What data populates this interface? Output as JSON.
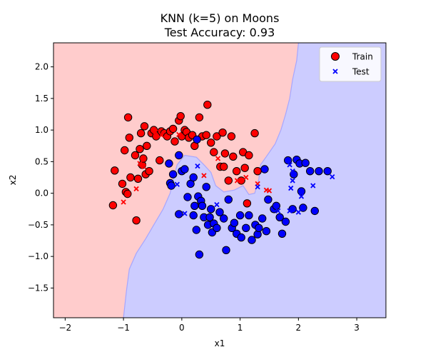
{
  "chart_data": {
    "type": "scatter",
    "title": "KNN (k=5) on Moons",
    "subtitle": "Test Accuracy: 0.93",
    "xlabel": "x1",
    "ylabel": "x2",
    "xlim": [
      -2.2,
      3.5
    ],
    "ylim": [
      -1.97,
      2.38
    ],
    "xticks": [
      -2,
      -1,
      0,
      1,
      2,
      3
    ],
    "xtick_labels": [
      "−2",
      "−1",
      "0",
      "1",
      "2",
      "3"
    ],
    "yticks": [
      -1.5,
      -1.0,
      -0.5,
      0.0,
      0.5,
      1.0,
      1.5,
      2.0
    ],
    "ytick_labels": [
      "−1.5",
      "−1.0",
      "−0.5",
      "0.0",
      "0.5",
      "1.0",
      "1.5",
      "2.0"
    ],
    "grid": false,
    "legend_position": "top-right",
    "legend": [
      "Train",
      "Test"
    ],
    "colors": {
      "class0": "#ff0000",
      "class1": "#0000ff",
      "region0": "#ffcccc",
      "region1": "#ccccff",
      "boundary": "#a6a6ff",
      "marker_edge": "#000000"
    },
    "decision_boundary": [
      [
        -1.0,
        -1.97
      ],
      [
        -0.95,
        -1.55
      ],
      [
        -0.9,
        -1.2
      ],
      [
        -0.78,
        -0.95
      ],
      [
        -0.62,
        -0.72
      ],
      [
        -0.48,
        -0.5
      ],
      [
        -0.32,
        -0.25
      ],
      [
        -0.2,
        0.0
      ],
      [
        -0.14,
        0.25
      ],
      [
        -0.08,
        0.45
      ],
      [
        0.05,
        0.6
      ],
      [
        0.25,
        0.57
      ],
      [
        0.38,
        0.45
      ],
      [
        0.5,
        0.33
      ],
      [
        0.58,
        0.12
      ],
      [
        0.72,
        0.02
      ],
      [
        0.9,
        0.05
      ],
      [
        1.05,
        0.12
      ],
      [
        1.15,
        -0.02
      ],
      [
        1.25,
        0.0
      ],
      [
        1.32,
        0.22
      ],
      [
        1.35,
        0.45
      ],
      [
        1.45,
        0.58
      ],
      [
        1.6,
        0.78
      ],
      [
        1.7,
        1.0
      ],
      [
        1.78,
        1.25
      ],
      [
        1.85,
        1.5
      ],
      [
        1.9,
        1.8
      ],
      [
        1.97,
        2.1
      ],
      [
        2.0,
        2.38
      ]
    ],
    "series": [
      {
        "name": "Train",
        "class0": [
          [
            -1.18,
            -0.19
          ],
          [
            -1.15,
            0.36
          ],
          [
            -1.02,
            0.15
          ],
          [
            -0.98,
            0.68
          ],
          [
            -0.96,
            0.02
          ],
          [
            -0.93,
            -0.01
          ],
          [
            -0.92,
            1.2
          ],
          [
            -0.9,
            0.88
          ],
          [
            -0.88,
            0.25
          ],
          [
            -0.8,
            0.6
          ],
          [
            -0.78,
            -0.43
          ],
          [
            -0.75,
            0.23
          ],
          [
            -0.72,
            0.7
          ],
          [
            -0.7,
            0.95
          ],
          [
            -0.68,
            0.45
          ],
          [
            -0.66,
            0.55
          ],
          [
            -0.64,
            1.06
          ],
          [
            -0.62,
            0.3
          ],
          [
            -0.6,
            0.75
          ],
          [
            -0.56,
            0.35
          ],
          [
            -0.52,
            0.95
          ],
          [
            -0.48,
            1.0
          ],
          [
            -0.44,
            0.9
          ],
          [
            -0.38,
            0.52
          ],
          [
            -0.35,
            0.98
          ],
          [
            -0.3,
            0.95
          ],
          [
            -0.25,
            0.9
          ],
          [
            -0.2,
            0.98
          ],
          [
            -0.15,
            1.02
          ],
          [
            -0.12,
            0.82
          ],
          [
            -0.05,
            1.15
          ],
          [
            -0.02,
            1.22
          ],
          [
            0.0,
            0.9
          ],
          [
            0.05,
            1.0
          ],
          [
            0.08,
            0.97
          ],
          [
            0.12,
            0.88
          ],
          [
            0.18,
            0.92
          ],
          [
            0.22,
            0.75
          ],
          [
            0.3,
            1.2
          ],
          [
            0.35,
            0.9
          ],
          [
            0.42,
            0.92
          ],
          [
            0.44,
            1.4
          ],
          [
            0.5,
            0.8
          ],
          [
            0.55,
            0.65
          ],
          [
            0.6,
            0.9
          ],
          [
            0.66,
            0.42
          ],
          [
            0.7,
            0.96
          ],
          [
            0.72,
            0.42
          ],
          [
            0.74,
            0.63
          ],
          [
            0.8,
            0.2
          ],
          [
            0.85,
            0.9
          ],
          [
            0.88,
            0.58
          ],
          [
            0.94,
            0.35
          ],
          [
            1.02,
            0.2
          ],
          [
            1.05,
            0.65
          ],
          [
            1.08,
            0.4
          ],
          [
            1.12,
            -0.16
          ],
          [
            1.15,
            0.6
          ],
          [
            1.25,
            0.95
          ],
          [
            1.3,
            0.35
          ]
        ],
        "class1": [
          [
            -0.22,
            0.47
          ],
          [
            -0.2,
            0.16
          ],
          [
            -0.18,
            0.12
          ],
          [
            -0.15,
            0.3
          ],
          [
            -0.05,
            0.6
          ],
          [
            -0.05,
            -0.33
          ],
          [
            0.0,
            0.35
          ],
          [
            0.05,
            0.38
          ],
          [
            0.1,
            -0.06
          ],
          [
            0.15,
            0.15
          ],
          [
            0.2,
            0.25
          ],
          [
            0.2,
            -0.35
          ],
          [
            0.22,
            -0.2
          ],
          [
            0.25,
            -0.58
          ],
          [
            0.26,
            0.85
          ],
          [
            0.28,
            -0.05
          ],
          [
            0.3,
            -0.97
          ],
          [
            0.33,
            -0.12
          ],
          [
            0.35,
            -0.2
          ],
          [
            0.38,
            -0.38
          ],
          [
            0.42,
            0.1
          ],
          [
            0.45,
            -0.5
          ],
          [
            0.48,
            -0.38
          ],
          [
            0.5,
            -0.25
          ],
          [
            0.52,
            -0.62
          ],
          [
            0.55,
            -0.48
          ],
          [
            0.6,
            -0.55
          ],
          [
            0.65,
            -0.3
          ],
          [
            0.72,
            -0.4
          ],
          [
            0.76,
            -0.9
          ],
          [
            0.8,
            -0.1
          ],
          [
            0.86,
            -0.55
          ],
          [
            0.9,
            -0.47
          ],
          [
            0.94,
            -0.64
          ],
          [
            1.0,
            -0.35
          ],
          [
            1.02,
            -0.7
          ],
          [
            1.1,
            -0.55
          ],
          [
            1.15,
            -0.35
          ],
          [
            1.2,
            -0.74
          ],
          [
            1.26,
            -0.5
          ],
          [
            1.3,
            -0.65
          ],
          [
            1.32,
            -0.55
          ],
          [
            1.38,
            -0.4
          ],
          [
            1.42,
            0.38
          ],
          [
            1.45,
            -0.6
          ],
          [
            1.48,
            -0.1
          ],
          [
            1.58,
            -0.25
          ],
          [
            1.62,
            -0.2
          ],
          [
            1.68,
            -0.38
          ],
          [
            1.72,
            -0.64
          ],
          [
            1.78,
            -0.45
          ],
          [
            1.82,
            0.52
          ],
          [
            1.9,
            -0.25
          ],
          [
            1.92,
            0.3
          ],
          [
            1.97,
            0.53
          ],
          [
            2.02,
            0.47
          ],
          [
            2.05,
            0.03
          ],
          [
            2.08,
            -0.23
          ],
          [
            2.12,
            0.48
          ],
          [
            2.2,
            0.35
          ],
          [
            2.28,
            -0.28
          ],
          [
            2.35,
            0.35
          ],
          [
            2.5,
            0.35
          ]
        ]
      },
      {
        "name": "Test",
        "class0": [
          [
            -1.0,
            -0.14
          ],
          [
            -0.78,
            0.07
          ],
          [
            -0.72,
            0.47
          ],
          [
            -0.65,
            0.42
          ],
          [
            -0.45,
            0.97
          ],
          [
            -0.35,
            0.92
          ],
          [
            -0.05,
            0.93
          ],
          [
            0.38,
            0.28
          ],
          [
            0.62,
            0.55
          ],
          [
            0.95,
            0.2
          ],
          [
            1.1,
            0.25
          ],
          [
            1.45,
            0.05
          ],
          [
            1.5,
            0.04
          ],
          [
            1.3,
            0.15
          ]
        ],
        "class1": [
          [
            -0.08,
            0.14
          ],
          [
            0.05,
            -0.32
          ],
          [
            0.27,
            0.43
          ],
          [
            0.6,
            -0.18
          ],
          [
            1.3,
            0.1
          ],
          [
            1.65,
            -0.28
          ],
          [
            1.85,
            -0.28
          ],
          [
            1.87,
            0.08
          ],
          [
            1.9,
            0.2
          ],
          [
            2.0,
            -0.3
          ],
          [
            2.05,
            -0.05
          ],
          [
            2.25,
            0.12
          ],
          [
            2.58,
            0.26
          ],
          [
            1.85,
            0.45
          ],
          [
            1.9,
            0.35
          ]
        ]
      }
    ]
  }
}
